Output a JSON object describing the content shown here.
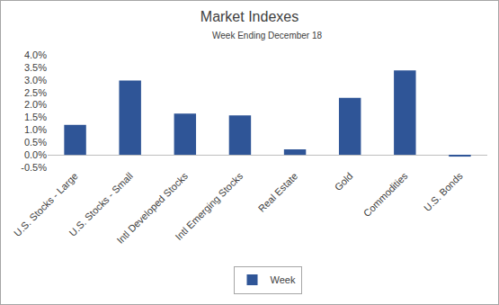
{
  "chart_data": {
    "type": "bar",
    "title": "Market Indexes",
    "subtitle": "Week Ending December 18",
    "categories": [
      "U.S. Stocks - Large",
      "U.S. Stocks - Small",
      "Intl Developed Stocks",
      "Intl Emerging Stocks",
      "Real Estate",
      "Gold",
      "Commodities",
      "U.S. Bonds"
    ],
    "series": [
      {
        "name": "Week",
        "color": "#2f5597",
        "values": [
          1.2,
          2.97,
          1.65,
          1.58,
          0.22,
          2.28,
          3.38,
          -0.07
        ]
      }
    ],
    "ylim": [
      -0.5,
      4.0
    ],
    "yticks": [
      {
        "value": -0.5,
        "label": "-0.5%"
      },
      {
        "value": 0,
        "label": "0.0%"
      },
      {
        "value": 0.5,
        "label": "0.5%"
      },
      {
        "value": 1,
        "label": "1.0%"
      },
      {
        "value": 1.5,
        "label": "1.5%"
      },
      {
        "value": 2,
        "label": "2.0%"
      },
      {
        "value": 2.5,
        "label": "2.5%"
      },
      {
        "value": 3,
        "label": "3.0%"
      },
      {
        "value": 3.5,
        "label": "3.5%"
      },
      {
        "value": 4,
        "label": "4.0%"
      }
    ],
    "grid": false,
    "legend": "bottom"
  }
}
